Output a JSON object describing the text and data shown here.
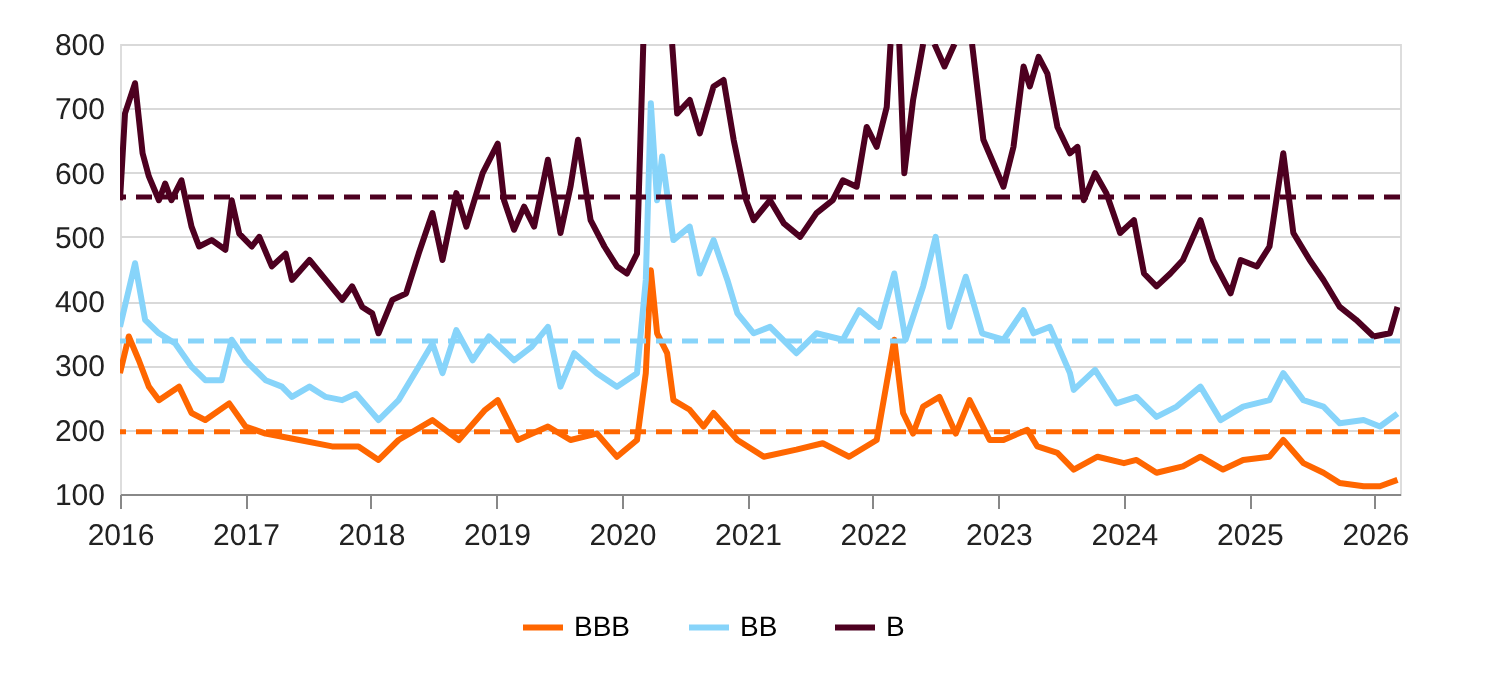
{
  "chart_data": {
    "type": "line",
    "xlim": [
      2016,
      2026.2
    ],
    "xticks": [
      2016,
      2017,
      2018,
      2019,
      2020,
      2021,
      2022,
      2023,
      2024,
      2025,
      2026
    ],
    "ylim": [
      100,
      800
    ],
    "yticks": [
      100,
      200,
      300,
      400,
      500,
      600,
      700,
      800
    ],
    "grid": "y",
    "legend": "bottom",
    "line_style": "solid",
    "marker": "none",
    "series": [
      {
        "name": "BBB",
        "color": "#ff6600",
        "x": [
          2016.0,
          2016.07,
          2016.15,
          2016.23,
          2016.31,
          2016.47,
          2016.57,
          2016.68,
          2016.87,
          2017.0,
          2017.16,
          2017.43,
          2017.69,
          2017.9,
          2018.06,
          2018.22,
          2018.49,
          2018.7,
          2018.91,
          2019.01,
          2019.17,
          2019.41,
          2019.59,
          2019.8,
          2019.96,
          2020.12,
          2020.19,
          2020.23,
          2020.28,
          2020.36,
          2020.41,
          2020.54,
          2020.65,
          2020.73,
          2020.92,
          2021.13,
          2021.39,
          2021.6,
          2021.81,
          2022.03,
          2022.17,
          2022.24,
          2022.32,
          2022.4,
          2022.53,
          2022.66,
          2022.77,
          2022.93,
          2023.04,
          2023.23,
          2023.31,
          2023.47,
          2023.6,
          2023.79,
          2024.0,
          2024.1,
          2024.26,
          2024.47,
          2024.61,
          2024.79,
          2024.95,
          2025.16,
          2025.27,
          2025.43,
          2025.59,
          2025.72,
          2025.91,
          2026.04,
          2026.18
        ],
        "values": [
          288,
          345,
          308,
          267,
          246,
          267,
          226,
          215,
          241,
          205,
          194,
          184,
          174,
          174,
          153,
          184,
          215,
          184,
          231,
          246,
          184,
          205,
          184,
          194,
          158,
          184,
          288,
          448,
          350,
          319,
          246,
          231,
          205,
          226,
          184,
          158,
          169,
          179,
          158,
          184,
          340,
          226,
          194,
          236,
          251,
          194,
          246,
          184,
          184,
          200,
          174,
          164,
          138,
          158,
          148,
          153,
          133,
          143,
          158,
          138,
          153,
          158,
          184,
          148,
          133,
          117,
          112,
          112,
          122
        ]
      },
      {
        "name": "BB",
        "color": "#87d4fa",
        "x": [
          2016.0,
          2016.12,
          2016.2,
          2016.31,
          2016.44,
          2016.57,
          2016.68,
          2016.81,
          2016.89,
          2017.0,
          2017.16,
          2017.29,
          2017.37,
          2017.51,
          2017.64,
          2017.77,
          2017.88,
          2018.06,
          2018.22,
          2018.38,
          2018.49,
          2018.57,
          2018.68,
          2018.81,
          2018.94,
          2019.14,
          2019.28,
          2019.41,
          2019.51,
          2019.62,
          2019.8,
          2019.96,
          2020.12,
          2020.19,
          2020.23,
          2020.28,
          2020.32,
          2020.41,
          2020.54,
          2020.62,
          2020.73,
          2020.84,
          2020.92,
          2021.05,
          2021.18,
          2021.39,
          2021.55,
          2021.76,
          2021.89,
          2022.05,
          2022.17,
          2022.26,
          2022.4,
          2022.5,
          2022.61,
          2022.74,
          2022.87,
          2023.04,
          2023.2,
          2023.28,
          2023.41,
          2023.57,
          2023.6,
          2023.77,
          2023.94,
          2024.1,
          2024.26,
          2024.42,
          2024.61,
          2024.77,
          2024.95,
          2025.16,
          2025.27,
          2025.43,
          2025.59,
          2025.72,
          2025.91,
          2026.04,
          2026.18
        ],
        "values": [
          360,
          459,
          371,
          350,
          334,
          298,
          277,
          277,
          340,
          308,
          277,
          267,
          251,
          267,
          251,
          246,
          256,
          215,
          246,
          298,
          334,
          288,
          355,
          308,
          345,
          308,
          329,
          360,
          267,
          319,
          288,
          267,
          288,
          433,
          708,
          557,
          625,
          495,
          516,
          443,
          495,
          433,
          381,
          350,
          360,
          319,
          350,
          340,
          386,
          360,
          443,
          340,
          423,
          500,
          360,
          438,
          350,
          340,
          386,
          350,
          360,
          288,
          262,
          293,
          241,
          251,
          220,
          236,
          267,
          215,
          236,
          246,
          288,
          246,
          236,
          210,
          215,
          205,
          225
        ]
      },
      {
        "name": "B",
        "color": "#4d0020",
        "x": [
          2016.0,
          2016.04,
          2016.12,
          2016.18,
          2016.23,
          2016.31,
          2016.36,
          2016.41,
          2016.49,
          2016.57,
          2016.63,
          2016.73,
          2016.84,
          2016.89,
          2016.95,
          2017.05,
          2017.11,
          2017.21,
          2017.32,
          2017.37,
          2017.51,
          2017.64,
          2017.77,
          2017.85,
          2017.93,
          2018.01,
          2018.06,
          2018.17,
          2018.28,
          2018.38,
          2018.49,
          2018.57,
          2018.68,
          2018.76,
          2018.89,
          2019.01,
          2019.06,
          2019.14,
          2019.22,
          2019.3,
          2019.41,
          2019.51,
          2019.59,
          2019.65,
          2019.75,
          2019.86,
          2019.96,
          2020.04,
          2020.12,
          2020.17,
          2020.2,
          2020.4,
          2020.44,
          2020.54,
          2020.62,
          2020.73,
          2020.81,
          2020.89,
          2020.99,
          2021.05,
          2021.18,
          2021.29,
          2021.42,
          2021.55,
          2021.68,
          2021.76,
          2021.87,
          2021.95,
          2022.03,
          2022.11,
          2022.14,
          2022.17,
          2022.21,
          2022.25,
          2022.32,
          2022.4,
          2022.44,
          2022.49,
          2022.57,
          2022.65,
          2022.7,
          2022.79,
          2022.88,
          2023.04,
          2023.12,
          2023.2,
          2023.25,
          2023.32,
          2023.39,
          2023.47,
          2023.57,
          2023.63,
          2023.68,
          2023.77,
          2023.86,
          2023.97,
          2024.08,
          2024.16,
          2024.26,
          2024.37,
          2024.47,
          2024.61,
          2024.71,
          2024.85,
          2024.93,
          2025.06,
          2025.16,
          2025.27,
          2025.35,
          2025.48,
          2025.59,
          2025.72,
          2025.85,
          2025.99,
          2026.12,
          2026.18
        ],
        "values": [
          557,
          692,
          739,
          630,
          594,
          557,
          583,
          557,
          588,
          516,
          485,
          495,
          480,
          557,
          505,
          485,
          500,
          454,
          474,
          433,
          464,
          433,
          402,
          423,
          391,
          381,
          350,
          402,
          412,
          474,
          537,
          464,
          568,
          516,
          599,
          645,
          557,
          511,
          547,
          516,
          620,
          506,
          578,
          651,
          526,
          485,
          454,
          443,
          474,
          800,
          null,
          800,
          692,
          713,
          661,
          734,
          744,
          651,
          557,
          526,
          557,
          521,
          500,
          537,
          557,
          588,
          578,
          671,
          640,
          702,
          800,
          null,
          800,
          599,
          713,
          800,
          null,
          800,
          765,
          800,
          null,
          800,
          651,
          578,
          640,
          765,
          734,
          780,
          754,
          671,
          630,
          640,
          557,
          599,
          568,
          506,
          526,
          443,
          423,
          443,
          464,
          526,
          464,
          412,
          464,
          454,
          485,
          630,
          506,
          464,
          433,
          391,
          371,
          345,
          350,
          391
        ]
      }
    ],
    "ref_lines": [
      {
        "axis": "y",
        "value": 562,
        "color": "#4d0020",
        "line_style": "dashed"
      },
      {
        "axis": "y",
        "value": 338,
        "color": "#87d4fa",
        "line_style": "dashed"
      },
      {
        "axis": "y",
        "value": 197,
        "color": "#ff6600",
        "line_style": "dashed"
      }
    ]
  }
}
